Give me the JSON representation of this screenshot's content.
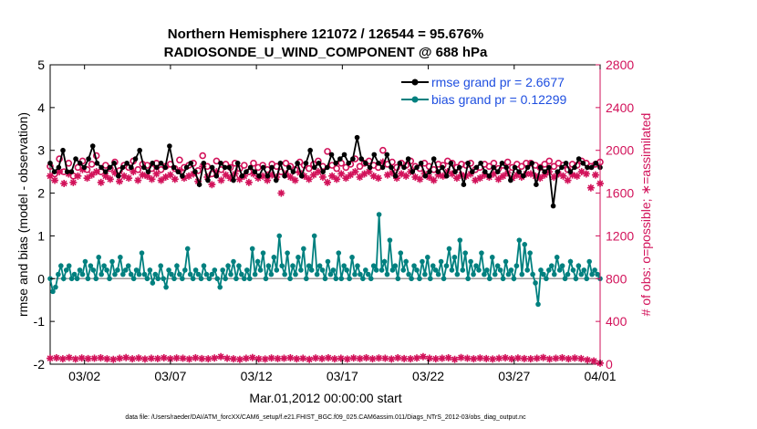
{
  "chart_data": {
    "type": "line",
    "title": "Northern Hemisphere 121072 / 126544 = 95.676%",
    "subtitle": "RADIOSONDE_U_WIND_COMPONENT @ 688 hPa",
    "xlabel": "Mar.01,2012 00:00:00 start",
    "ylabel_left": "rmse and bias (model - observation)",
    "ylabel_right": "# of obs: o=possible; ∗=assimilated",
    "footer": "data file: /Users/raeder/DAI/ATM_forcXX/CAM6_setup/f.e21.FHIST_BGC.f09_025.CAM6assim.011/Diags_NTrS_2012-03/obs_diag_output.nc",
    "x_range_days": [
      -1,
      31
    ],
    "y_left": {
      "range": [
        -2,
        5
      ],
      "ticks": [
        "-2",
        "-1",
        "0",
        "1",
        "2",
        "3",
        "4",
        "5"
      ]
    },
    "y_right": {
      "range": [
        0,
        2800
      ],
      "ticks": [
        "0",
        "400",
        "800",
        "1200",
        "1600",
        "2000",
        "2400",
        "2800"
      ]
    },
    "x_ticks": [
      {
        "day": 1,
        "label": "03/02"
      },
      {
        "day": 6,
        "label": "03/07"
      },
      {
        "day": 11,
        "label": "03/12"
      },
      {
        "day": 16,
        "label": "03/17"
      },
      {
        "day": 21,
        "label": "03/22"
      },
      {
        "day": 26,
        "label": "03/27"
      },
      {
        "day": 31,
        "label": "04/01"
      }
    ],
    "zero_line": 0,
    "colors": {
      "rmse": "#000000",
      "bias": "#00807f",
      "obs": "#d2125a",
      "legend_text": "#1f4fe0",
      "zero": "#9a9a9a"
    },
    "legend": {
      "position": "top-right"
    },
    "series": [
      {
        "name": "rmse grand pr = 2.6677",
        "axis": "left",
        "marker": "filled-circle",
        "values": [
          2.7,
          2.5,
          2.6,
          3.0,
          2.5,
          2.5,
          2.8,
          2.7,
          2.6,
          2.8,
          3.1,
          2.7,
          2.6,
          2.5,
          2.6,
          2.7,
          2.4,
          2.6,
          2.7,
          2.6,
          2.8,
          3.0,
          2.6,
          2.5,
          2.7,
          2.6,
          2.7,
          2.6,
          3.1,
          2.6,
          2.5,
          2.4,
          2.6,
          2.7,
          2.5,
          2.2,
          2.7,
          2.3,
          2.6,
          2.4,
          2.7,
          2.6,
          2.6,
          2.3,
          2.7,
          2.4,
          2.5,
          2.6,
          2.5,
          2.4,
          2.6,
          2.4,
          2.6,
          2.3,
          2.7,
          2.4,
          2.6,
          2.5,
          2.7,
          2.4,
          2.7,
          3.0,
          2.6,
          2.7,
          2.5,
          2.6,
          2.9,
          2.7,
          2.8,
          2.9,
          2.7,
          2.8,
          3.3,
          2.8,
          2.7,
          2.6,
          2.9,
          2.7,
          2.6,
          2.9,
          2.6,
          2.4,
          2.7,
          2.6,
          2.8,
          2.5,
          2.6,
          2.7,
          2.4,
          2.5,
          2.8,
          2.5,
          2.6,
          2.4,
          2.7,
          2.5,
          2.6,
          2.2,
          2.7,
          2.5,
          2.6,
          2.7,
          2.5,
          2.4,
          2.6,
          2.5,
          2.7,
          2.6,
          2.3,
          2.6,
          2.5,
          2.4,
          2.6,
          2.7,
          2.2,
          2.6,
          2.5,
          2.6,
          1.7,
          2.5,
          2.6,
          2.7,
          2.5,
          2.6,
          2.8,
          2.7,
          2.6,
          2.6,
          2.7,
          2.6
        ]
      },
      {
        "name": "bias grand pr = 0.12299",
        "axis": "left",
        "marker": "filled-circle",
        "values": [
          0.0,
          -0.3,
          -0.2,
          0.1,
          0.3,
          0.0,
          0.2,
          0.3,
          0.0,
          0.1,
          0.0,
          0.2,
          0.1,
          0.4,
          0.0,
          0.3,
          0.2,
          0.0,
          0.5,
          0.1,
          0.3,
          0.2,
          0.0,
          0.4,
          0.1,
          0.2,
          0.5,
          0.1,
          0.2,
          0.3,
          0.1,
          0.0,
          0.2,
          0.1,
          0.6,
          0.1,
          0.0,
          0.2,
          -0.1,
          0.1,
          0.0,
          0.3,
          0.0,
          -0.2,
          0.2,
          0.1,
          0.0,
          0.3,
          0.1,
          0.0,
          0.2,
          0.7,
          0.1,
          0.0,
          0.2,
          0.1,
          0.0,
          0.3,
          0.1,
          0.0,
          0.1,
          0.2,
          0.0,
          -0.2,
          0.2,
          0.0,
          0.3,
          0.1,
          0.4,
          0.0,
          0.3,
          0.1,
          0.0,
          0.2,
          0.0,
          0.7,
          0.1,
          0.4,
          0.2,
          0.6,
          0.0,
          0.3,
          0.1,
          0.5,
          0.2,
          1.0,
          0.3,
          0.1,
          0.6,
          0.0,
          0.3,
          0.1,
          0.5,
          0.2,
          0.7,
          0.0,
          0.3,
          0.2,
          1.0,
          0.1,
          0.3,
          0.2,
          0.0,
          0.4,
          0.1,
          0.2,
          0.0,
          0.6,
          0.0,
          0.3,
          0.2,
          0.0,
          0.5,
          0.1,
          0.3,
          0.1,
          0.0,
          0.2,
          0.1,
          0.0,
          0.3,
          0.2,
          1.5,
          0.2,
          0.4,
          0.1,
          0.9,
          0.2,
          0.3,
          0.0,
          0.6,
          0.2,
          0.4,
          0.1,
          0.0,
          0.3,
          0.2,
          0.0,
          0.4,
          0.1,
          0.5,
          0.0,
          0.3,
          0.2,
          0.1,
          0.4,
          0.0,
          0.3,
          0.7,
          0.2,
          0.5,
          0.1,
          0.9,
          0.2,
          0.6,
          0.0,
          0.4,
          0.1,
          0.3,
          0.2,
          0.6,
          0.1,
          0.2,
          0.0,
          0.5,
          0.1,
          0.3,
          0.2,
          0.0,
          0.4,
          0.1,
          0.2,
          0.0,
          0.3,
          0.9,
          0.1,
          0.8,
          0.2,
          0.6,
          0.1,
          -0.1,
          -0.6,
          0.2,
          0.1,
          0.0,
          0.2,
          0.3,
          0.1,
          0.5,
          0.2,
          0.3,
          0.0,
          0.1,
          0.4,
          0.2,
          0.0,
          0.3,
          0.1,
          0.2,
          0.0,
          0.4,
          0.1,
          0.2,
          0.1,
          0.0
        ]
      },
      {
        "name": "obs possible",
        "axis": "right",
        "marker": "open-circle",
        "values": [
          1850,
          1780,
          1920,
          1800,
          1880,
          1760,
          1840,
          1900,
          1820,
          1870,
          1950,
          1800,
          1860,
          1830,
          1890,
          1810,
          1860,
          1840,
          1900,
          1820,
          1870,
          1860,
          1830,
          1880,
          1820,
          1850,
          1870,
          1830,
          1910,
          1840,
          1860,
          1880,
          1810,
          1950,
          1850,
          1780,
          1900,
          1820,
          1870,
          1840,
          1880,
          1830,
          1860,
          1800,
          1880,
          1840,
          1860,
          1820,
          1870,
          1850,
          1800,
          1880,
          1850,
          1820,
          1890,
          1860,
          1830,
          1870,
          1900,
          1850,
          1990,
          1860,
          1830,
          1880,
          1840,
          1870,
          1920,
          1850,
          1880,
          1900,
          1860,
          1840,
          2000,
          1870,
          1890,
          1840,
          1880,
          1860,
          1900,
          1850,
          1830,
          1880,
          1850,
          1820,
          1870,
          1860,
          1900,
          1880,
          1840,
          1870,
          1860,
          1880,
          1820,
          1840,
          1870,
          1850,
          1880,
          1830,
          1860,
          1890,
          1840,
          1870,
          1850,
          1880,
          1880,
          1860,
          1840,
          1870,
          1900,
          1850,
          1880,
          1860,
          1820,
          1870,
          1860,
          1900,
          1880,
          1850,
          1870,
          1890
        ]
      },
      {
        "name": "obs assimilated",
        "axis": "right",
        "marker": "asterisk",
        "values": [
          1760,
          1720,
          1800,
          1690,
          1780,
          1700,
          1760,
          1820,
          1740,
          1770,
          1800,
          1700,
          1760,
          1730,
          1790,
          1710,
          1760,
          1740,
          1800,
          1720,
          1770,
          1760,
          1730,
          1780,
          1720,
          1750,
          1770,
          1730,
          1810,
          1740,
          1760,
          1780,
          1710,
          1850,
          1750,
          1680,
          1800,
          1720,
          1770,
          1740,
          1780,
          1730,
          1760,
          1700,
          1780,
          1740,
          1760,
          1720,
          1770,
          1750,
          1600,
          1780,
          1750,
          1720,
          1790,
          1760,
          1730,
          1770,
          1800,
          1750,
          1700,
          1760,
          1730,
          1780,
          1740,
          1770,
          1800,
          1750,
          1780,
          1800,
          1760,
          1740,
          1890,
          1770,
          1790,
          1740,
          1780,
          1760,
          1800,
          1750,
          1730,
          1780,
          1750,
          1720,
          1770,
          1760,
          1800,
          1780,
          1740,
          1770,
          1760,
          1780,
          1720,
          1740,
          1770,
          1750,
          1780,
          1730,
          1760,
          1790,
          1740,
          1770,
          1750,
          1780,
          1780,
          1760,
          1740,
          1770,
          1800,
          1750,
          1780,
          1760,
          1720,
          1770,
          1760,
          1800,
          1780,
          1650,
          1770,
          1690
        ]
      },
      {
        "name": "obs assimilated (lower)",
        "axis": "right",
        "marker": "asterisk",
        "values": [
          55,
          60,
          50,
          62,
          48,
          58,
          52,
          55,
          60,
          50,
          45,
          55,
          62,
          50,
          58,
          48,
          55,
          52,
          60,
          50,
          58,
          55,
          48,
          60,
          52,
          50,
          58,
          70,
          55,
          50,
          45,
          55,
          62,
          50,
          48,
          58,
          52,
          55,
          60,
          50,
          55,
          45,
          58,
          52,
          60,
          50,
          55,
          48,
          58,
          52,
          60,
          50,
          58,
          55,
          48,
          60,
          52,
          50,
          58,
          70,
          55,
          50,
          55,
          60,
          45,
          62,
          55,
          50,
          58,
          52,
          48,
          55,
          60,
          50,
          58,
          52,
          50,
          55,
          62,
          48,
          55,
          60,
          50,
          58,
          52,
          40,
          30,
          10
        ]
      }
    ]
  }
}
